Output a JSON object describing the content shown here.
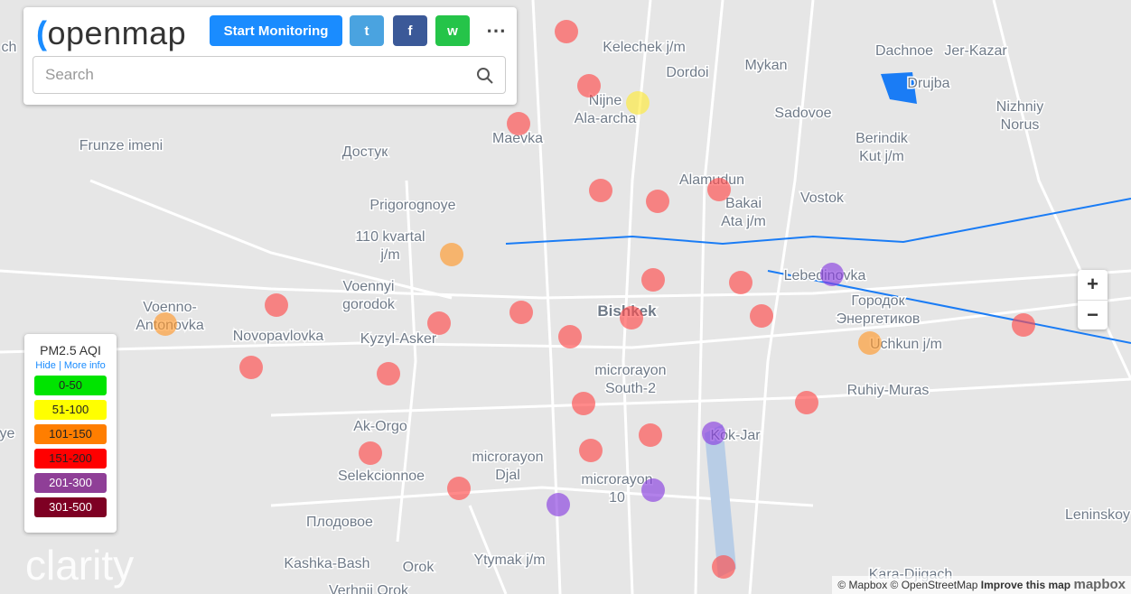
{
  "toolbar": {
    "logo": "openmap",
    "start_button": "Start Monitoring",
    "search_placeholder": "Search"
  },
  "legend": {
    "title": "PM2.5 AQI",
    "hide": "Hide",
    "more_info": "More info",
    "ranges": [
      {
        "label": "0-50",
        "color": "#00e400"
      },
      {
        "label": "51-100",
        "color": "#ffff00"
      },
      {
        "label": "101-150",
        "color": "#ff7e00"
      },
      {
        "label": "151-200",
        "color": "#ff0000"
      },
      {
        "label": "201-300",
        "color": "#8f3f97"
      },
      {
        "label": "301-500",
        "color": "#7e0023"
      }
    ]
  },
  "zoom": {
    "in": "+",
    "out": "−"
  },
  "brand": "clarity",
  "attribution": {
    "mapbox": "© Mapbox",
    "osm": "© OpenStreetMap",
    "improve": "Improve this map",
    "logo": "mapbox"
  },
  "city": "Bishkek",
  "places": [
    [
      "Kelechek j/m"
    ],
    [
      "Dordoi"
    ],
    [
      "Mykan"
    ],
    [
      "Dachnoe"
    ],
    [
      "Jer-Kazar"
    ],
    [
      "Drujba"
    ],
    [
      "Nizhniy",
      "Norus"
    ],
    [
      "Nijne",
      "Ala-archa"
    ],
    [
      "Maevka"
    ],
    [
      "Sadovoe"
    ],
    [
      "Berindik",
      "Kut j/m"
    ],
    [
      "Frunze imeni"
    ],
    [
      "Достук"
    ],
    [
      "Alamudun"
    ],
    [
      "Bakai",
      "Ata j/m"
    ],
    [
      "Vostok"
    ],
    [
      "Prigorognoye"
    ],
    [
      "110 kvartal",
      "j/m"
    ],
    [
      "Lebedinovka"
    ],
    [
      "Voennyi",
      "gorodok"
    ],
    [
      "Voenno-",
      "Antonovka"
    ],
    [
      "Городок",
      "Энергетиков"
    ],
    [
      "Novopavlovka"
    ],
    [
      "Kyzyl-Asker"
    ],
    [
      "Uchkun j/m"
    ],
    [
      "microrayon",
      "South-2"
    ],
    [
      "Ruhiy-Muras"
    ],
    [
      "Kok-Jar"
    ],
    [
      "Ak-Orgo"
    ],
    [
      "microrayon",
      "Djal"
    ],
    [
      "Selekcionnoe"
    ],
    [
      "microrayon",
      "10"
    ],
    [
      "Leninskoy"
    ],
    [
      "Плодовое"
    ],
    [
      "Kashka-Bash"
    ],
    [
      "Orok"
    ],
    [
      "Ytymak j/m"
    ],
    [
      "Kara-Djigach"
    ],
    [
      "Verhnij Orok"
    ],
    [
      "ye"
    ],
    [
      "ch"
    ]
  ]
}
